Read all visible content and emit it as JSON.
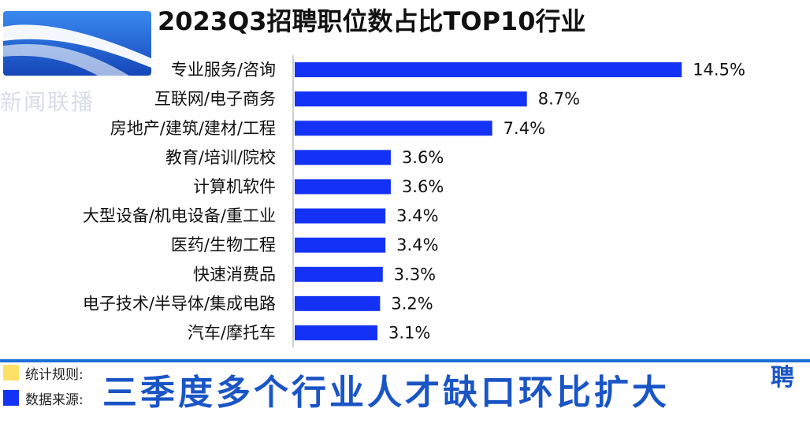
{
  "title": "2023Q3招聘职位数占比TOP10行业",
  "watermark": "新闻联播",
  "chart_data": {
    "type": "bar",
    "orientation": "horizontal",
    "title": "2023Q3招聘职位数占比TOP10行业",
    "categories": [
      "专业服务/咨询",
      "互联网/电子商务",
      "房地产/建筑/建材/工程",
      "教育/培训/院校",
      "计算机软件",
      "大型设备/机电设备/重工业",
      "医药/生物工程",
      "快速消费品",
      "电子技术/半导体/集成电路",
      "汽车/摩托车"
    ],
    "values": [
      14.5,
      8.7,
      7.4,
      3.6,
      3.6,
      3.4,
      3.4,
      3.3,
      3.2,
      3.1
    ],
    "value_labels": [
      "14.5%",
      "8.7%",
      "7.4%",
      "3.6%",
      "3.6%",
      "3.4%",
      "3.4%",
      "3.3%",
      "3.2%",
      "3.1%"
    ],
    "unit": "%",
    "xlim": [
      0,
      16
    ],
    "bar_color": "#1432f5",
    "axis_color": "#bfbfbf",
    "grid": false,
    "legend": "none"
  },
  "legend_items": [
    {
      "label": "统计规则:",
      "color": "#ffe066"
    },
    {
      "label": "数据来源:",
      "color": "#1432f5"
    }
  ],
  "caption": "三季度多个行业人才缺口环比扩大",
  "caption_right": "聘",
  "colors": {
    "caption_text": "#1a55c6",
    "band_line": "#1e6fd6",
    "logo_blue": "#1f5fd0"
  }
}
